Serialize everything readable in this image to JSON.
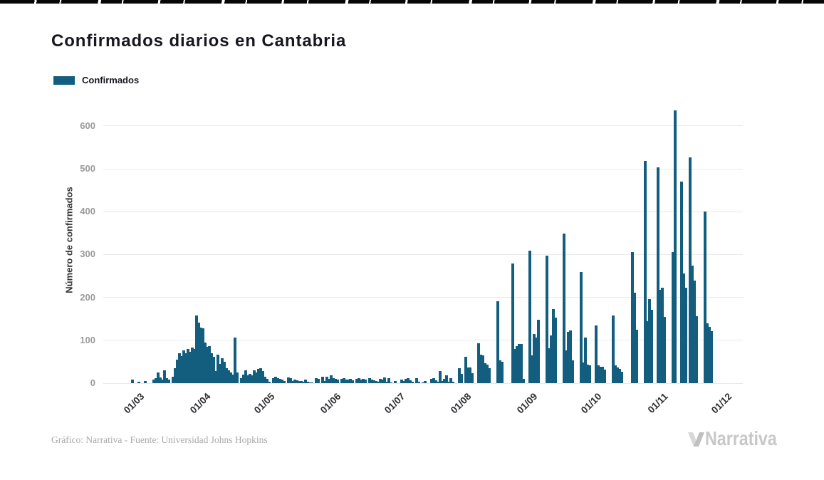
{
  "page": {
    "title": "Confirmados diarios en Cantabria"
  },
  "legend": {
    "label": "Confirmados",
    "swatch_color": "#135e7e"
  },
  "footer": {
    "credit": "Gráfico: Narrativa - Fuente: Universidad Johns Hopkins",
    "brand": "Narrativa"
  },
  "chart_data": {
    "type": "bar",
    "title": "Confirmados diarios en Cantabria",
    "ylabel": "Número de confirmados",
    "xlabel": "",
    "ylim": [
      0,
      660
    ],
    "yticks": [
      0,
      100,
      200,
      300,
      400,
      500,
      600
    ],
    "xtick_labels": [
      "01/03",
      "01/04",
      "01/05",
      "01/06",
      "01/07",
      "01/08",
      "01/09",
      "01/10",
      "01/11",
      "01/12"
    ],
    "xtick_day_offsets": [
      0,
      31,
      61,
      92,
      122,
      153,
      184,
      214,
      245,
      275
    ],
    "grid": true,
    "legend_position": "top-left",
    "bar_color": "#135e7e",
    "x_start_date": "2020-03-01",
    "x_end_date": "2020-12-01",
    "values": [
      0,
      8,
      0,
      0,
      3,
      0,
      0,
      5,
      0,
      0,
      0,
      9,
      12,
      25,
      14,
      8,
      30,
      12,
      8,
      0,
      15,
      35,
      55,
      70,
      63,
      77,
      70,
      80,
      73,
      83,
      80,
      158,
      142,
      130,
      128,
      95,
      85,
      87,
      70,
      62,
      28,
      67,
      45,
      58,
      50,
      35,
      30,
      25,
      20,
      107,
      25,
      0,
      12,
      20,
      30,
      18,
      22,
      18,
      30,
      25,
      33,
      35,
      28,
      15,
      10,
      3,
      0,
      12,
      15,
      12,
      10,
      8,
      5,
      0,
      14,
      12,
      5,
      8,
      6,
      5,
      5,
      4,
      8,
      3,
      2,
      2,
      0,
      12,
      10,
      0,
      15,
      5,
      15,
      10,
      18,
      12,
      10,
      8,
      0,
      10,
      12,
      8,
      8,
      10,
      6,
      0,
      10,
      12,
      8,
      10,
      8,
      0,
      12,
      8,
      6,
      5,
      3,
      10,
      8,
      14,
      4,
      12,
      2,
      0,
      5,
      0,
      0,
      8,
      5,
      10,
      12,
      6,
      3,
      0,
      12,
      3,
      0,
      2,
      5,
      0,
      0,
      10,
      12,
      6,
      3,
      28,
      5,
      10,
      18,
      4,
      12,
      4,
      0,
      0,
      35,
      22,
      0,
      61,
      36,
      37,
      24,
      0,
      0,
      93,
      67,
      64,
      47,
      44,
      35,
      0,
      0,
      0,
      191,
      54,
      50,
      0,
      0,
      0,
      0,
      280,
      80,
      87,
      92,
      92,
      10,
      0,
      0,
      309,
      65,
      115,
      107,
      148,
      0,
      0,
      0,
      297,
      82,
      111,
      173,
      153,
      0,
      0,
      0,
      349,
      76,
      120,
      123,
      54,
      0,
      0,
      0,
      260,
      48,
      107,
      43,
      41,
      0,
      0,
      134,
      42,
      39,
      39,
      31,
      0,
      0,
      0,
      158,
      41,
      37,
      33,
      26,
      0,
      0,
      0,
      0,
      306,
      211,
      125,
      0,
      0,
      0,
      518,
      145,
      196,
      172,
      0,
      0,
      504,
      217,
      222,
      155,
      0,
      0,
      0,
      306,
      636,
      0,
      0,
      471,
      256,
      223,
      0,
      527,
      275,
      240,
      157,
      0,
      0,
      0,
      400,
      140,
      131,
      122,
      0,
      0,
      0
    ]
  }
}
